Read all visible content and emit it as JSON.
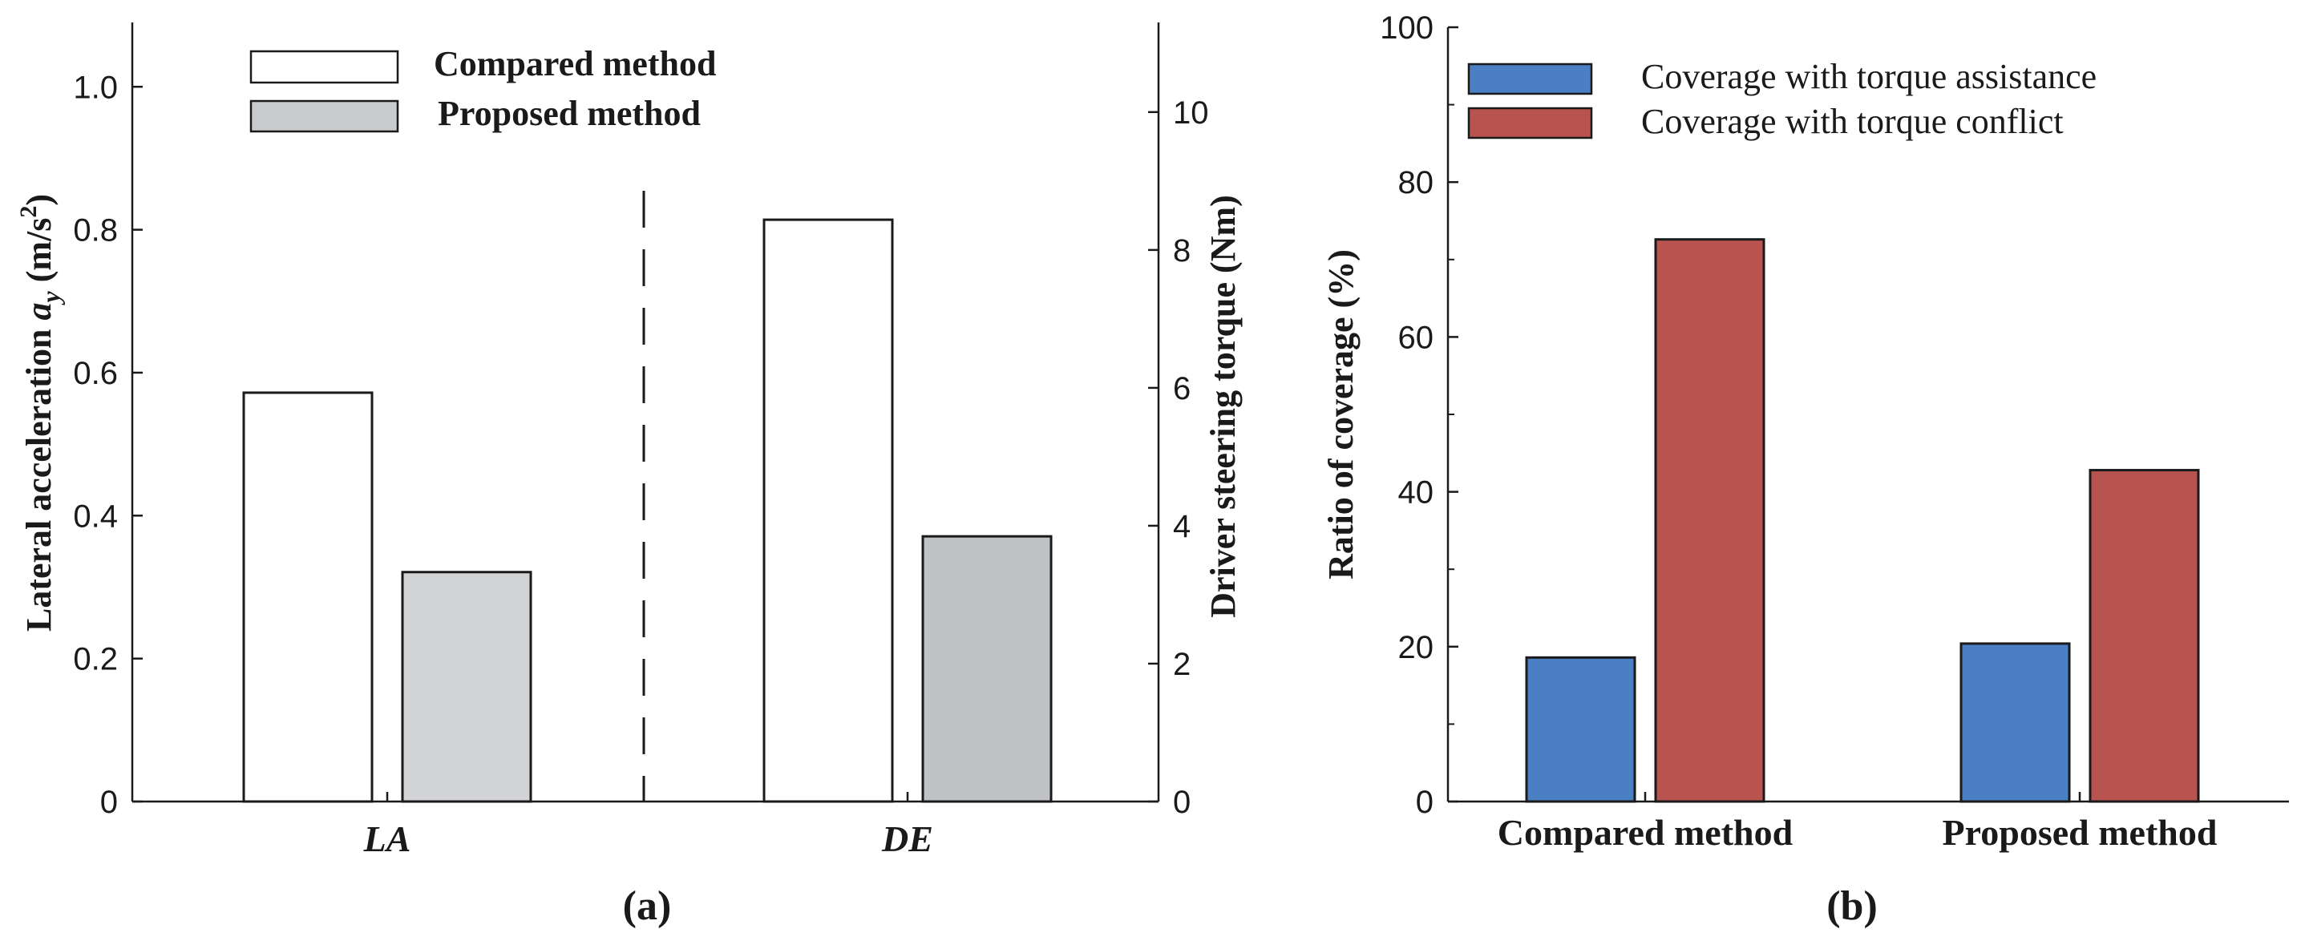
{
  "chart_data": [
    {
      "type": "bar",
      "panel_label": "(a)",
      "categories": [
        "LA",
        "DE"
      ],
      "series": [
        {
          "name": "Compared method",
          "color": "#ffffff",
          "values": [
            0.572,
            0.814
          ]
        },
        {
          "name": "Proposed method",
          "color_LA": "#d2d3d5",
          "color_DE": "#bfc1c4",
          "values": [
            0.321,
            0.371
          ]
        }
      ],
      "left_axis": {
        "label_main": "Lateral acceleration ",
        "label_var": "a",
        "label_sub": "y",
        "label_unit": " (m/s",
        "label_sup": "2",
        "label_close": ")",
        "ylim": [
          0,
          1.09
        ],
        "ticks": [
          0,
          0.2,
          0.4,
          0.6,
          0.8,
          1.0
        ],
        "tick_labels": [
          "0",
          "0.2",
          "0.4",
          "0.6",
          "0.8",
          "1.0"
        ]
      },
      "right_axis": {
        "label": "Driver steering torque (Nm)",
        "ylim": [
          0,
          11.3
        ],
        "ticks": [
          0,
          2,
          4,
          6,
          8,
          10
        ],
        "tick_labels": [
          "0",
          "2",
          "4",
          "6",
          "8",
          "10"
        ]
      },
      "legend": [
        "Compared method",
        "Proposed method"
      ],
      "legend_position": "top-left"
    },
    {
      "type": "bar",
      "panel_label": "(b)",
      "categories": [
        "Compared method",
        "Proposed method"
      ],
      "series": [
        {
          "name": "Coverage with torque assistance",
          "color": "#4a80c3",
          "values": [
            18.6,
            20.4
          ]
        },
        {
          "name": "Coverage with torque conflict",
          "color": "#b95350",
          "values": [
            72.6,
            42.8
          ]
        }
      ],
      "ylabel": "Ratio of coverage (%)",
      "ylim": [
        0,
        100
      ],
      "ticks": [
        0,
        20,
        40,
        60,
        80,
        100
      ],
      "tick_labels": [
        "0",
        "20",
        "40",
        "60",
        "80",
        "100"
      ],
      "legend": [
        "Coverage with torque assistance",
        "Coverage with torque conflict"
      ],
      "legend_position": "top-left"
    }
  ]
}
